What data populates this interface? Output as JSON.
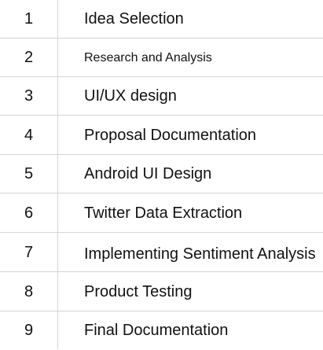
{
  "tasks": [
    {
      "number": "1",
      "label": "Idea Selection"
    },
    {
      "number": "2",
      "label": "Research and Analysis"
    },
    {
      "number": "3",
      "label": "UI/UX design"
    },
    {
      "number": "4",
      "label": "Proposal Documentation"
    },
    {
      "number": "5",
      "label": "Android UI Design"
    },
    {
      "number": "6",
      "label": "Twitter Data Extraction"
    },
    {
      "number": "7",
      "label": "Implementing Sentiment Analysis"
    },
    {
      "number": "8",
      "label": "Product Testing"
    },
    {
      "number": "9",
      "label": "Final Documentation"
    }
  ]
}
